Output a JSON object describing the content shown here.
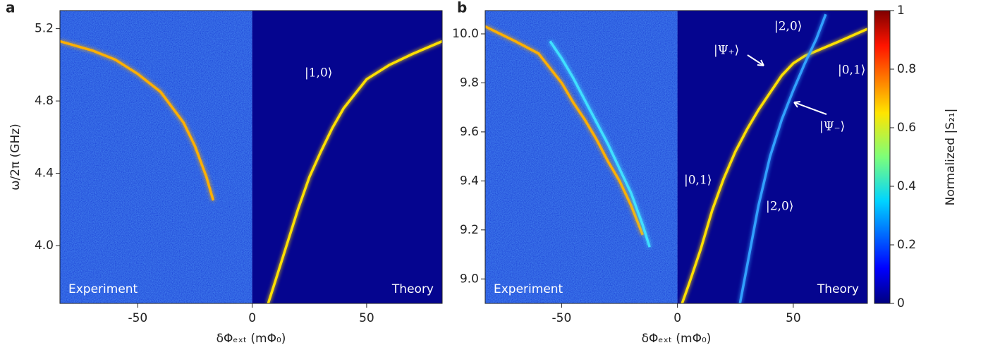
{
  "chart_data": [
    {
      "type": "line",
      "panel": "a",
      "xlabel": "δΦₑₓₜ (mΦ₀)",
      "ylabel": "ω/2π (GHz)",
      "xlim": [
        -84,
        83
      ],
      "ylim": [
        3.68,
        5.3
      ],
      "xticks": [
        -50,
        0,
        50
      ],
      "yticks": [
        {
          "value": 4,
          "label": "4.0"
        },
        4.4,
        4.8,
        5.2
      ],
      "labels": [
        "Experiment",
        "Theory"
      ],
      "annotations": [
        "|1,0⟩"
      ],
      "series": [
        {
          "color": "#ffb000",
          "x": [
            -84,
            -70,
            -60,
            -50,
            -40,
            -30,
            -25,
            -20,
            -17
          ],
          "values": [
            5.13,
            5.08,
            5.03,
            4.95,
            4.85,
            4.68,
            4.55,
            4.38,
            4.25
          ]
        },
        {
          "color": "#ffe000",
          "x": [
            7,
            10,
            15,
            20,
            25,
            30,
            35,
            40,
            50,
            60,
            70,
            83
          ],
          "values": [
            3.68,
            3.8,
            4.0,
            4.2,
            4.38,
            4.52,
            4.65,
            4.76,
            4.92,
            5.0,
            5.06,
            5.13
          ]
        }
      ]
    },
    {
      "type": "line",
      "panel": "b",
      "xlabel": "δΦₑₓₜ (mΦ₀)",
      "xlim": [
        -83,
        82
      ],
      "ylim": [
        8.9,
        10.095
      ],
      "xticks": [
        -50,
        0,
        50
      ],
      "yticks": [
        {
          "value": 9,
          "label": "9.0"
        },
        9.2,
        9.4,
        9.6,
        9.8,
        {
          "value": 10,
          "label": "10.0"
        }
      ],
      "labels": [
        "Experiment",
        "Theory"
      ],
      "annotations": [
        "|2,0⟩",
        "|Ψ₊⟩",
        "|0,1⟩",
        "|Ψ₋⟩",
        "|0,1⟩",
        "|2,0⟩"
      ],
      "series": [
        {
          "color": "#ffb000",
          "x": [
            -83,
            -70,
            -60,
            -50,
            -45,
            -40,
            -35,
            -30,
            -25,
            -20,
            -15
          ],
          "values": [
            10.03,
            9.97,
            9.92,
            9.8,
            9.72,
            9.65,
            9.57,
            9.48,
            9.4,
            9.3,
            9.18
          ]
        },
        {
          "color": "#40e0ff",
          "x": [
            -55,
            -50,
            -45,
            -40,
            -35,
            -30,
            -25,
            -20,
            -15,
            -12
          ],
          "values": [
            9.97,
            9.9,
            9.82,
            9.73,
            9.64,
            9.55,
            9.45,
            9.35,
            9.22,
            9.13
          ]
        },
        {
          "color": "#ffe000",
          "x": [
            2,
            5,
            10,
            15,
            20,
            25,
            30,
            35,
            40,
            45,
            50,
            55,
            60,
            70,
            82
          ],
          "values": [
            8.9,
            8.98,
            9.12,
            9.28,
            9.41,
            9.52,
            9.61,
            9.69,
            9.76,
            9.83,
            9.88,
            9.91,
            9.93,
            9.97,
            10.02
          ]
        },
        {
          "color": "#30a0ff",
          "x": [
            27,
            30,
            35,
            40,
            45,
            50,
            55,
            60,
            64
          ],
          "values": [
            8.9,
            9.05,
            9.3,
            9.5,
            9.65,
            9.77,
            9.88,
            9.98,
            10.08
          ]
        }
      ],
      "colorbar": {
        "label": "Normalized |S₂₁|",
        "lim": [
          0,
          1
        ],
        "ticks": [
          0,
          0.2,
          0.4,
          0.6,
          0.8,
          1
        ]
      }
    }
  ]
}
